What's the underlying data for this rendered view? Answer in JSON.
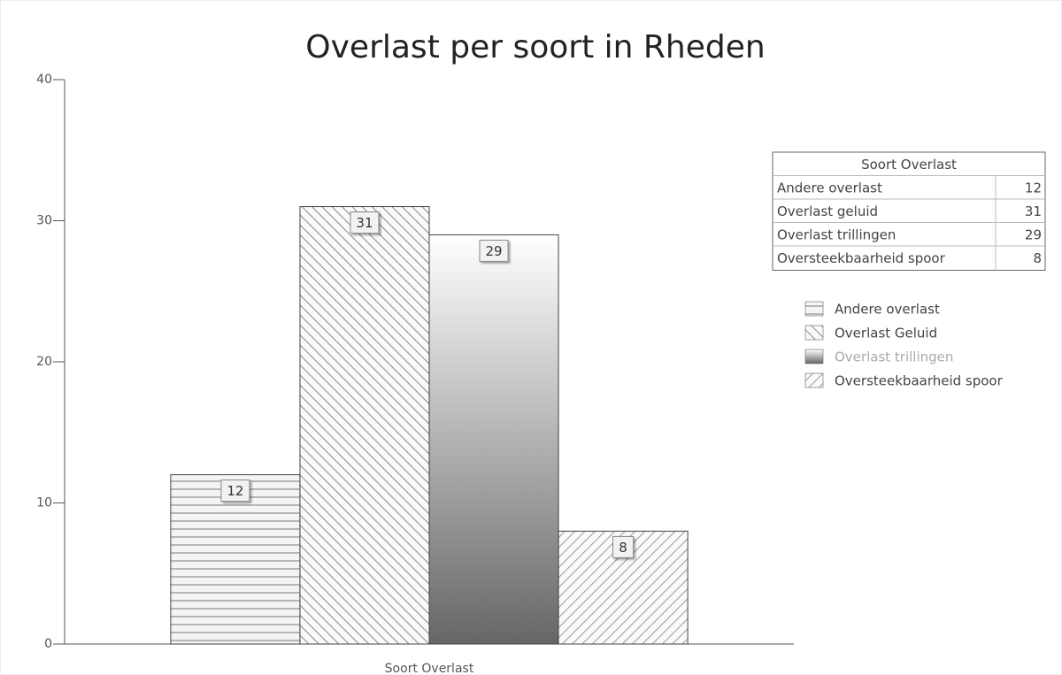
{
  "chart_data": {
    "type": "bar",
    "title": "Overlast per soort in Rheden",
    "categories": [
      "Soort Overlast"
    ],
    "series": [
      {
        "name": "Andere overlast",
        "pattern": "horizontal",
        "legend_color": "#444444",
        "values": [
          12
        ]
      },
      {
        "name": "Overlast Geluid",
        "pattern": "backslash",
        "legend_color": "#444444",
        "values": [
          31
        ]
      },
      {
        "name": "Overlast trillingen",
        "pattern": "gradient",
        "legend_color": "#aaaaaa",
        "values": [
          29
        ]
      },
      {
        "name": "Oversteekbaarheid spoor",
        "pattern": "slash",
        "legend_color": "#444444",
        "values": [
          8
        ]
      }
    ],
    "ylim": [
      0,
      40
    ],
    "yticks": [
      0,
      10,
      20,
      30,
      40
    ],
    "grid": false,
    "data_labels": true,
    "table": {
      "header": "Soort Overlast",
      "rows": [
        "Andere overlast",
        "Overlast geluid",
        "Overlast trillingen",
        "Oversteekbaarheid spoor"
      ]
    }
  }
}
